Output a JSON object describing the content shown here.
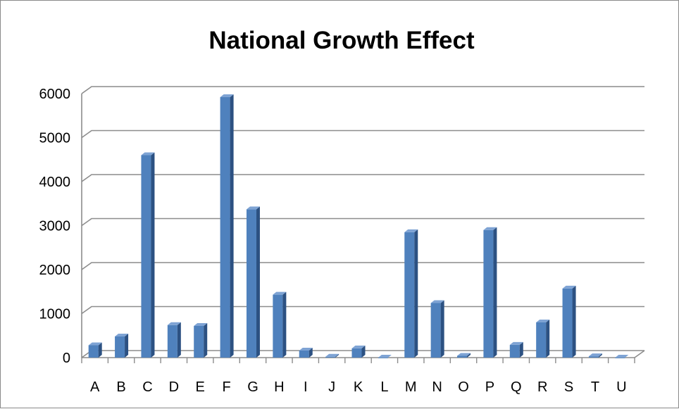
{
  "chart_data": {
    "type": "bar",
    "title": "National Growth Effect",
    "xlabel": "",
    "ylabel": "",
    "categories": [
      "A",
      "B",
      "C",
      "D",
      "E",
      "F",
      "G",
      "H",
      "I",
      "J",
      "K",
      "L",
      "M",
      "N",
      "O",
      "P",
      "Q",
      "R",
      "S",
      "T",
      "U"
    ],
    "values": [
      280,
      480,
      4600,
      740,
      720,
      5920,
      3370,
      1430,
      160,
      20,
      210,
      0,
      2850,
      1240,
      40,
      2900,
      290,
      800,
      1570,
      30,
      0
    ],
    "ylim": [
      0,
      6000
    ],
    "yticks": [
      "0",
      "1000",
      "2000",
      "3000",
      "4000",
      "5000",
      "6000"
    ],
    "grid": true,
    "legend": "none",
    "colors": {
      "bar_front": "#4f81bd",
      "bar_side": "#2c5182",
      "bar_top": "#7ea3d4",
      "gridline": "#8c8c8c",
      "axis": "#8c8c8c"
    }
  }
}
